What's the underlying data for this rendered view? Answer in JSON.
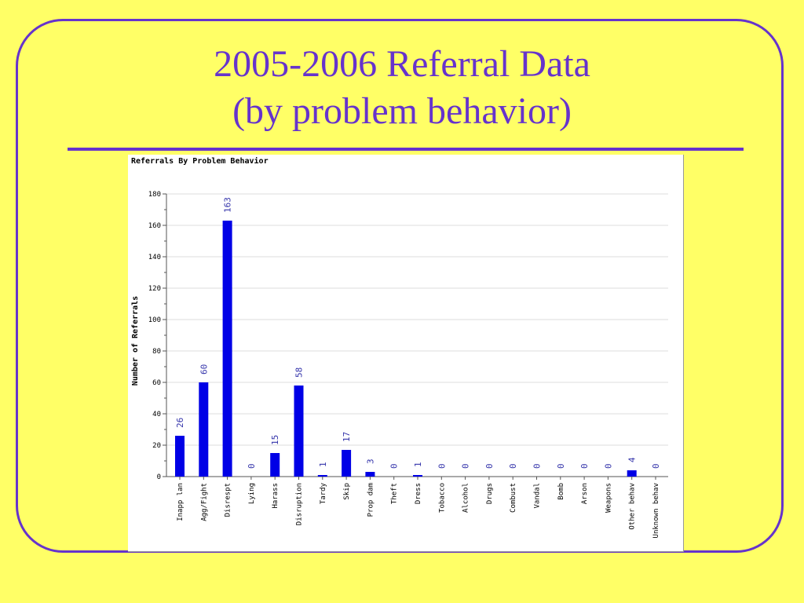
{
  "slide": {
    "title_line1": "2005-2006 Referral Data",
    "title_line2": "(by problem behavior)"
  },
  "colors": {
    "background": "#ffff66",
    "accent": "#6633cc",
    "bar": "#0000e6",
    "data_label": "#3333aa"
  },
  "chart_data": {
    "type": "bar",
    "title": "Referrals By Problem Behavior",
    "xlabel": "",
    "ylabel": "Number of Referrals",
    "ylim": [
      0,
      180
    ],
    "yticks": [
      0,
      20,
      40,
      60,
      80,
      100,
      120,
      140,
      160,
      180
    ],
    "grid": true,
    "categories": [
      "Inapp lan",
      "Agg/Fight",
      "Disrespt",
      "Lying",
      "Harass",
      "Disruption",
      "Tardy",
      "Skip",
      "Prop dam",
      "Theft",
      "Dress",
      "Tobacco",
      "Alcohol",
      "Drugs",
      "Combust",
      "Vandal",
      "Bomb",
      "Arson",
      "Weapons",
      "Other behav",
      "Unknown behav"
    ],
    "values": [
      26,
      60,
      163,
      0,
      15,
      58,
      1,
      17,
      3,
      0,
      1,
      0,
      0,
      0,
      0,
      0,
      0,
      0,
      0,
      4,
      0
    ]
  }
}
